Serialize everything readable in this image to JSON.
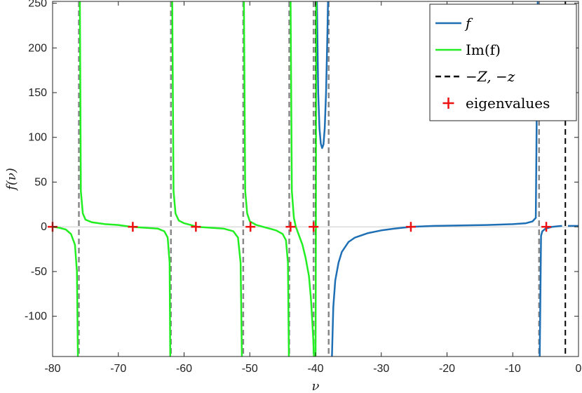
{
  "chart_data": {
    "type": "line",
    "title": "",
    "xlabel": "ν",
    "ylabel": "f(ν)",
    "xlim": [
      -80,
      0
    ],
    "ylim": [
      -145,
      252
    ],
    "xticks": [
      -80,
      -70,
      -60,
      -50,
      -40,
      -30,
      -20,
      -10,
      0
    ],
    "xtick_labels": [
      "-80",
      "-70",
      "-60",
      "-50",
      "-40",
      "-30",
      "-20",
      "-10",
      "0"
    ],
    "yticks": [
      -100,
      -50,
      0,
      50,
      100,
      150,
      200,
      250
    ],
    "ytick_labels": [
      "-100",
      "-50",
      "0",
      "50",
      "100",
      "150",
      "200",
      "250"
    ],
    "grid": false,
    "legend_position": "top-right",
    "colors": {
      "f": "#1f6fb4",
      "im": "#22ee22",
      "poles_Z": "#000000",
      "poles_im": "#888888",
      "eigen": "#ee1111",
      "zero_line": "#cccccc"
    },
    "series": [
      {
        "name": "f",
        "style": "solid",
        "segments": [
          {
            "x": [
              -39.8,
              -39.6,
              -39.4,
              -39.2,
              -39.0,
              -38.8,
              -38.6,
              -38.4,
              -38.2,
              -38.1
            ],
            "y": [
              252,
              150,
              110,
              93,
              88,
              92,
              110,
              150,
              215,
              252
            ]
          },
          {
            "x": [
              -37.5,
              -37.3,
              -37.0,
              -36.5,
              -36,
              -35,
              -34,
              -32,
              -30,
              -28,
              -25.5,
              -22,
              -18,
              -14,
              -10,
              -8,
              -7,
              -6.5,
              -6.2
            ],
            "y": [
              -145,
              -90,
              -60,
              -40,
              -28,
              -17,
              -12,
              -7,
              -4,
              -2,
              0,
              1,
              1.5,
              2,
              3,
              4,
              6,
              10,
              252
            ]
          },
          {
            "x": [
              -5.9,
              -5.7,
              -5.5,
              -5,
              -4.5,
              -4,
              -3,
              -2.5
            ],
            "y": [
              -145,
              -10,
              -5,
              -2,
              -1,
              0,
              0.8,
              1
            ]
          },
          {
            "x": [
              -1.6,
              -1,
              -0.5,
              0
            ],
            "y": [
              1,
              1,
              1,
              1
            ]
          }
        ]
      },
      {
        "name": "Im(f)",
        "style": "solid",
        "segments": [
          {
            "x": [
              -80,
              -79,
              -78,
              -77.2,
              -76.6,
              -76.3,
              -76.15
            ],
            "y": [
              0,
              -1,
              -3,
              -8,
              -20,
              -50,
              -145
            ]
          },
          {
            "x": [
              -75.85,
              -75.7,
              -75.4,
              -75,
              -74,
              -72,
              -70,
              -68,
              -66,
              -64,
              -63,
              -62.5,
              -62.2,
              -62.1
            ],
            "y": [
              252,
              40,
              15,
              8,
              5,
              3,
              2,
              0,
              -1,
              -2,
              -5,
              -12,
              -40,
              -145
            ]
          },
          {
            "x": [
              -61.8,
              -61.6,
              -61.3,
              -60.8,
              -60,
              -59,
              -58,
              -56,
              -54,
              -52.5,
              -51.8,
              -51.4,
              -51.2
            ],
            "y": [
              252,
              40,
              15,
              7,
              4,
              2,
              0,
              -1,
              -2,
              -5,
              -12,
              -40,
              -145
            ]
          },
          {
            "x": [
              -50.9,
              -50.7,
              -50.4,
              -50,
              -49,
              -48,
              -47,
              -46,
              -45,
              -44.5,
              -44.2,
              -44.05
            ],
            "y": [
              252,
              40,
              15,
              6,
              2,
              0,
              -2,
              -4,
              -8,
              -15,
              -40,
              -145
            ]
          },
          {
            "x": [
              -43.8,
              -43.6,
              -43.3,
              -43,
              -42.5,
              -42,
              -41.5,
              -41,
              -40.7,
              -40.5,
              -40.35,
              -40.25
            ],
            "y": [
              252,
              40,
              10,
              0,
              -10,
              -20,
              -35,
              -55,
              -80,
              -105,
              -125,
              -145
            ]
          },
          {
            "x": [
              -40.0,
              -39.95,
              -39.9
            ],
            "y": [
              -145,
              0,
              252
            ]
          }
        ]
      }
    ],
    "poles_Z_label": "−Z, −z",
    "poles_Z": [
      -40,
      -2
    ],
    "poles_im": [
      -76,
      -62,
      -51,
      -44,
      -40.3,
      -38,
      -6
    ],
    "eigenvalues_label": "eigenvalues",
    "eigenvalues": [
      -80,
      -67.8,
      -58.2,
      -49.9,
      -43.8,
      -40.3,
      -25.5,
      -4.9
    ],
    "legend": [
      {
        "label": "f",
        "kind": "line-f"
      },
      {
        "label": "Im(f)",
        "kind": "line-im"
      },
      {
        "label": "−Z, −z",
        "kind": "dashed-black"
      },
      {
        "label": "eigenvalues",
        "kind": "plus-red"
      }
    ]
  }
}
